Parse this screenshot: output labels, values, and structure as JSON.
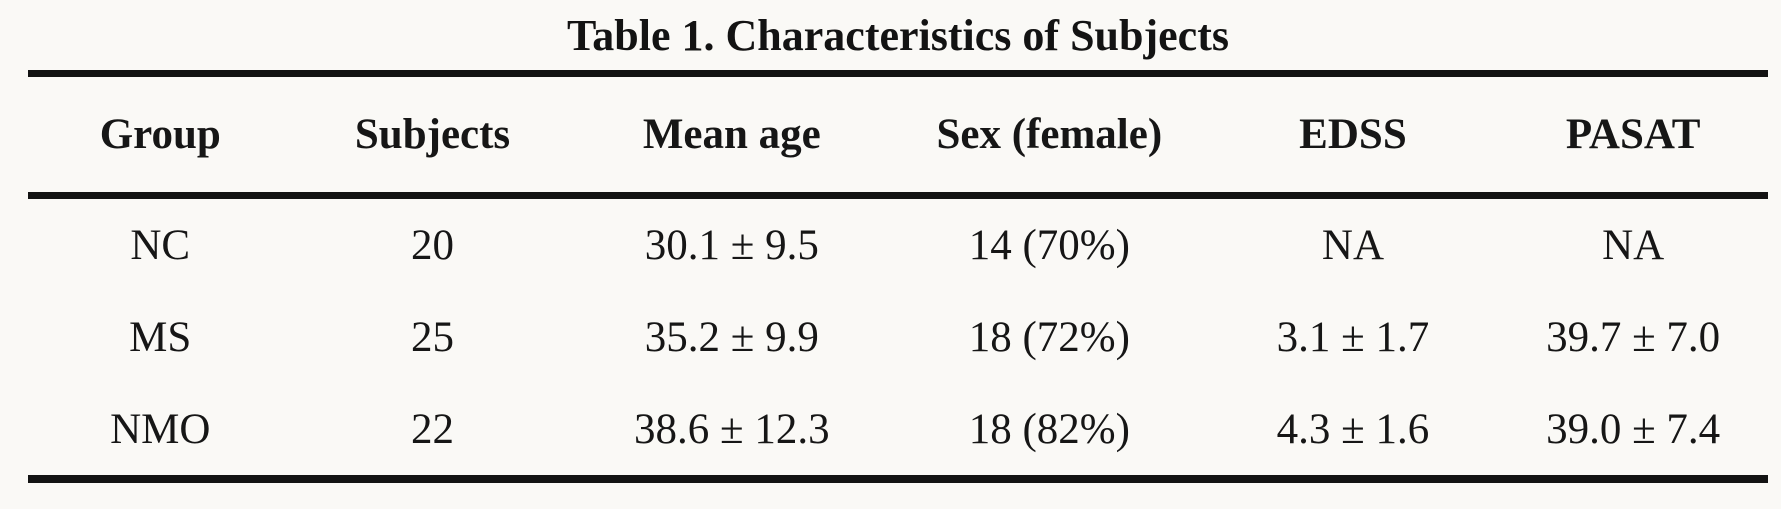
{
  "table": {
    "title": "Table 1. Characteristics of Subjects",
    "columns": [
      "Group",
      "Subjects",
      "Mean age",
      "Sex (female)",
      "EDSS",
      "PASAT"
    ],
    "rows": [
      [
        "NC",
        "20",
        "30.1 ± 9.5",
        "14 (70%)",
        "NA",
        "NA"
      ],
      [
        "MS",
        "25",
        "35.2 ± 9.9",
        "18 (72%)",
        "3.1 ± 1.7",
        "39.7 ± 7.0"
      ],
      [
        "NMO",
        "22",
        "38.6 ± 12.3",
        "18 (82%)",
        "4.3 ± 1.6",
        "39.0 ± 7.4"
      ]
    ]
  },
  "chart_data": {
    "type": "table",
    "title": "Table 1. Characteristics of Subjects",
    "columns": [
      "Group",
      "Subjects",
      "Mean age",
      "Sex (female)",
      "EDSS",
      "PASAT"
    ],
    "rows": [
      {
        "group": "NC",
        "subjects": 20,
        "mean_age": "30.1 ± 9.5",
        "sex_female": "14 (70%)",
        "edss": "NA",
        "pasat": "NA"
      },
      {
        "group": "MS",
        "subjects": 25,
        "mean_age": "35.2 ± 9.9",
        "sex_female": "18 (72%)",
        "edss": "3.1 ± 1.7",
        "pasat": "39.7 ± 7.0"
      },
      {
        "group": "NMO",
        "subjects": 22,
        "mean_age": "38.6 ± 12.3",
        "sex_female": "18 (82%)",
        "edss": "4.3 ± 1.6",
        "pasat": "39.0 ± 7.4"
      }
    ]
  },
  "colors": {
    "background": "#faf9f6",
    "text": "#161616",
    "rule": "#131313"
  }
}
